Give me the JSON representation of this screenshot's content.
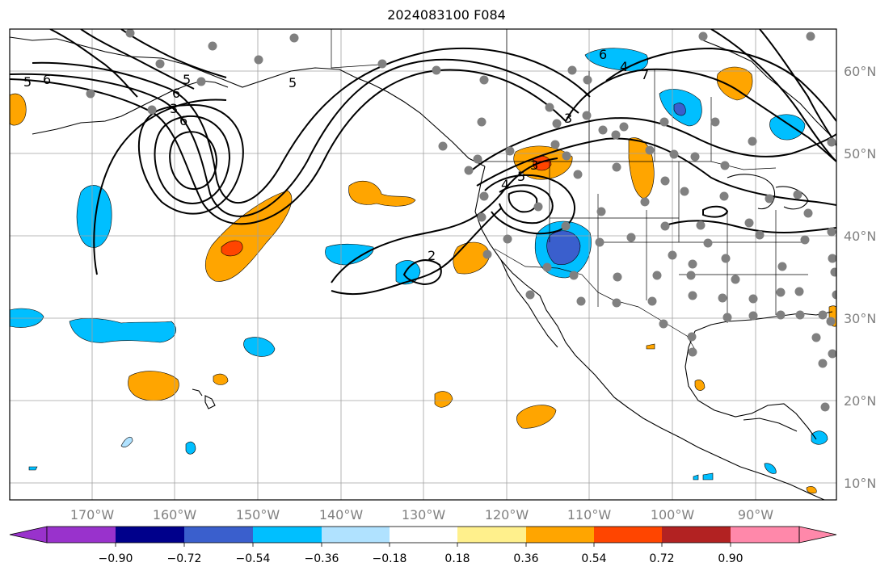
{
  "title": "2024083100 F084",
  "map": {
    "projection": "PlateCarree",
    "lon_range": [
      -180,
      -80
    ],
    "lat_range": [
      8,
      65
    ],
    "lon_ticks": [
      {
        "lon": -170,
        "label": "170°W"
      },
      {
        "lon": -160,
        "label": "160°W"
      },
      {
        "lon": -150,
        "label": "150°W"
      },
      {
        "lon": -140,
        "label": "140°W"
      },
      {
        "lon": -130,
        "label": "130°W"
      },
      {
        "lon": -120,
        "label": "120°W"
      },
      {
        "lon": -110,
        "label": "110°W"
      },
      {
        "lon": -100,
        "label": "100°W"
      },
      {
        "lon": -90,
        "label": "90°W"
      }
    ],
    "lat_ticks": [
      {
        "lat": 60,
        "label": "60°N"
      },
      {
        "lat": 50,
        "label": "50°N"
      },
      {
        "lat": 40,
        "label": "40°N"
      },
      {
        "lat": 30,
        "label": "30°N"
      },
      {
        "lat": 20,
        "label": "20°N"
      },
      {
        "lat": 10,
        "label": "10°N"
      }
    ],
    "gridlines": true,
    "contour_labels": [
      "5",
      "6",
      "5",
      "6",
      "6",
      "5",
      "3",
      "2",
      "5",
      "4",
      "3",
      "6",
      "4",
      "7",
      "3"
    ],
    "station_marker_color": "#808080",
    "coastline_color": "#000000"
  },
  "colorbar": {
    "ticks": [
      "−0.90",
      "−0.72",
      "−0.54",
      "−0.36",
      "−0.18",
      "0.18",
      "0.36",
      "0.54",
      "0.72",
      "0.90"
    ],
    "colors": [
      "#9932cc",
      "#00008b",
      "#3a5fcd",
      "#00bfff",
      "#b0e2ff",
      "#ffffff",
      "#fff08c",
      "#ffa500",
      "#ff4500",
      "#b22222",
      "#ff88aa"
    ]
  }
}
